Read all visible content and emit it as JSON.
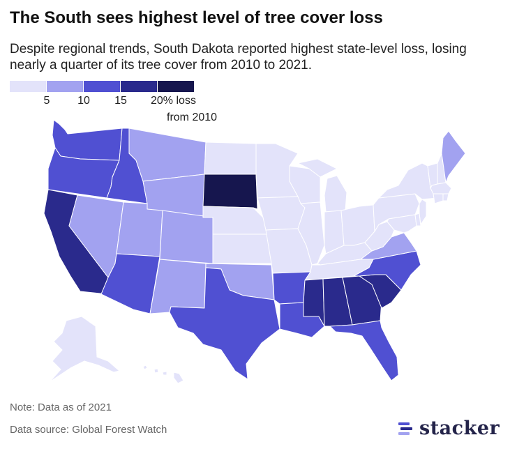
{
  "title": "The South sees highest level of tree cover loss",
  "subtitle": "Despite regional trends, South Dakota reported highest state-level loss, losing nearly a quarter of its tree cover from 2010 to 2021.",
  "legend": {
    "colors": [
      "#e3e3fa",
      "#a2a2f0",
      "#5050d2",
      "#2a2a8c",
      "#16164e"
    ],
    "ticks": [
      "5",
      "10",
      "15",
      "20%"
    ],
    "unit_line1": "loss",
    "unit_line2": "from 2010"
  },
  "colors": {
    "bin1": "#e3e3fa",
    "bin2": "#a2a2f0",
    "bin3": "#5050d2",
    "bin4": "#2a2a8c",
    "bin5": "#16164e"
  },
  "map_data": {
    "classification": "choropleth",
    "bins_percent_loss": [
      [
        0,
        5
      ],
      [
        5,
        10
      ],
      [
        10,
        15
      ],
      [
        15,
        20
      ],
      [
        20,
        25
      ]
    ],
    "states": [
      {
        "state": "Washington",
        "bin": 3
      },
      {
        "state": "Oregon",
        "bin": 3
      },
      {
        "state": "California",
        "bin": 4
      },
      {
        "state": "Idaho",
        "bin": 3
      },
      {
        "state": "Nevada",
        "bin": 2
      },
      {
        "state": "Montana",
        "bin": 2
      },
      {
        "state": "Wyoming",
        "bin": 2
      },
      {
        "state": "Utah",
        "bin": 2
      },
      {
        "state": "Colorado",
        "bin": 2
      },
      {
        "state": "Arizona",
        "bin": 3
      },
      {
        "state": "New Mexico",
        "bin": 2
      },
      {
        "state": "North Dakota",
        "bin": 1
      },
      {
        "state": "South Dakota",
        "bin": 5
      },
      {
        "state": "Nebraska",
        "bin": 1
      },
      {
        "state": "Kansas",
        "bin": 1
      },
      {
        "state": "Oklahoma",
        "bin": 2
      },
      {
        "state": "Texas",
        "bin": 3
      },
      {
        "state": "Minnesota",
        "bin": 1
      },
      {
        "state": "Iowa",
        "bin": 1
      },
      {
        "state": "Missouri",
        "bin": 1
      },
      {
        "state": "Arkansas",
        "bin": 3
      },
      {
        "state": "Louisiana",
        "bin": 3
      },
      {
        "state": "Wisconsin",
        "bin": 1
      },
      {
        "state": "Illinois",
        "bin": 1
      },
      {
        "state": "Michigan",
        "bin": 1
      },
      {
        "state": "Indiana",
        "bin": 1
      },
      {
        "state": "Ohio",
        "bin": 1
      },
      {
        "state": "Kentucky",
        "bin": 1
      },
      {
        "state": "Tennessee",
        "bin": 1
      },
      {
        "state": "Mississippi",
        "bin": 4
      },
      {
        "state": "Alabama",
        "bin": 4
      },
      {
        "state": "Georgia",
        "bin": 4
      },
      {
        "state": "Florida",
        "bin": 3
      },
      {
        "state": "South Carolina",
        "bin": 4
      },
      {
        "state": "North Carolina",
        "bin": 3
      },
      {
        "state": "Virginia",
        "bin": 2
      },
      {
        "state": "West Virginia",
        "bin": 1
      },
      {
        "state": "Pennsylvania",
        "bin": 1
      },
      {
        "state": "New York",
        "bin": 1
      },
      {
        "state": "Maryland",
        "bin": 1
      },
      {
        "state": "Delaware",
        "bin": 1
      },
      {
        "state": "New Jersey",
        "bin": 1
      },
      {
        "state": "Vermont",
        "bin": 1
      },
      {
        "state": "New Hampshire",
        "bin": 1
      },
      {
        "state": "Massachusetts",
        "bin": 1
      },
      {
        "state": "Connecticut",
        "bin": 1
      },
      {
        "state": "Rhode Island",
        "bin": 1
      },
      {
        "state": "Maine",
        "bin": 2
      },
      {
        "state": "Alaska",
        "bin": 1
      },
      {
        "state": "Hawaii",
        "bin": 1
      }
    ]
  },
  "footer": {
    "note": "Note: Data as of 2021",
    "source": "Data source: Global Forest Watch",
    "brand": "stacker"
  }
}
